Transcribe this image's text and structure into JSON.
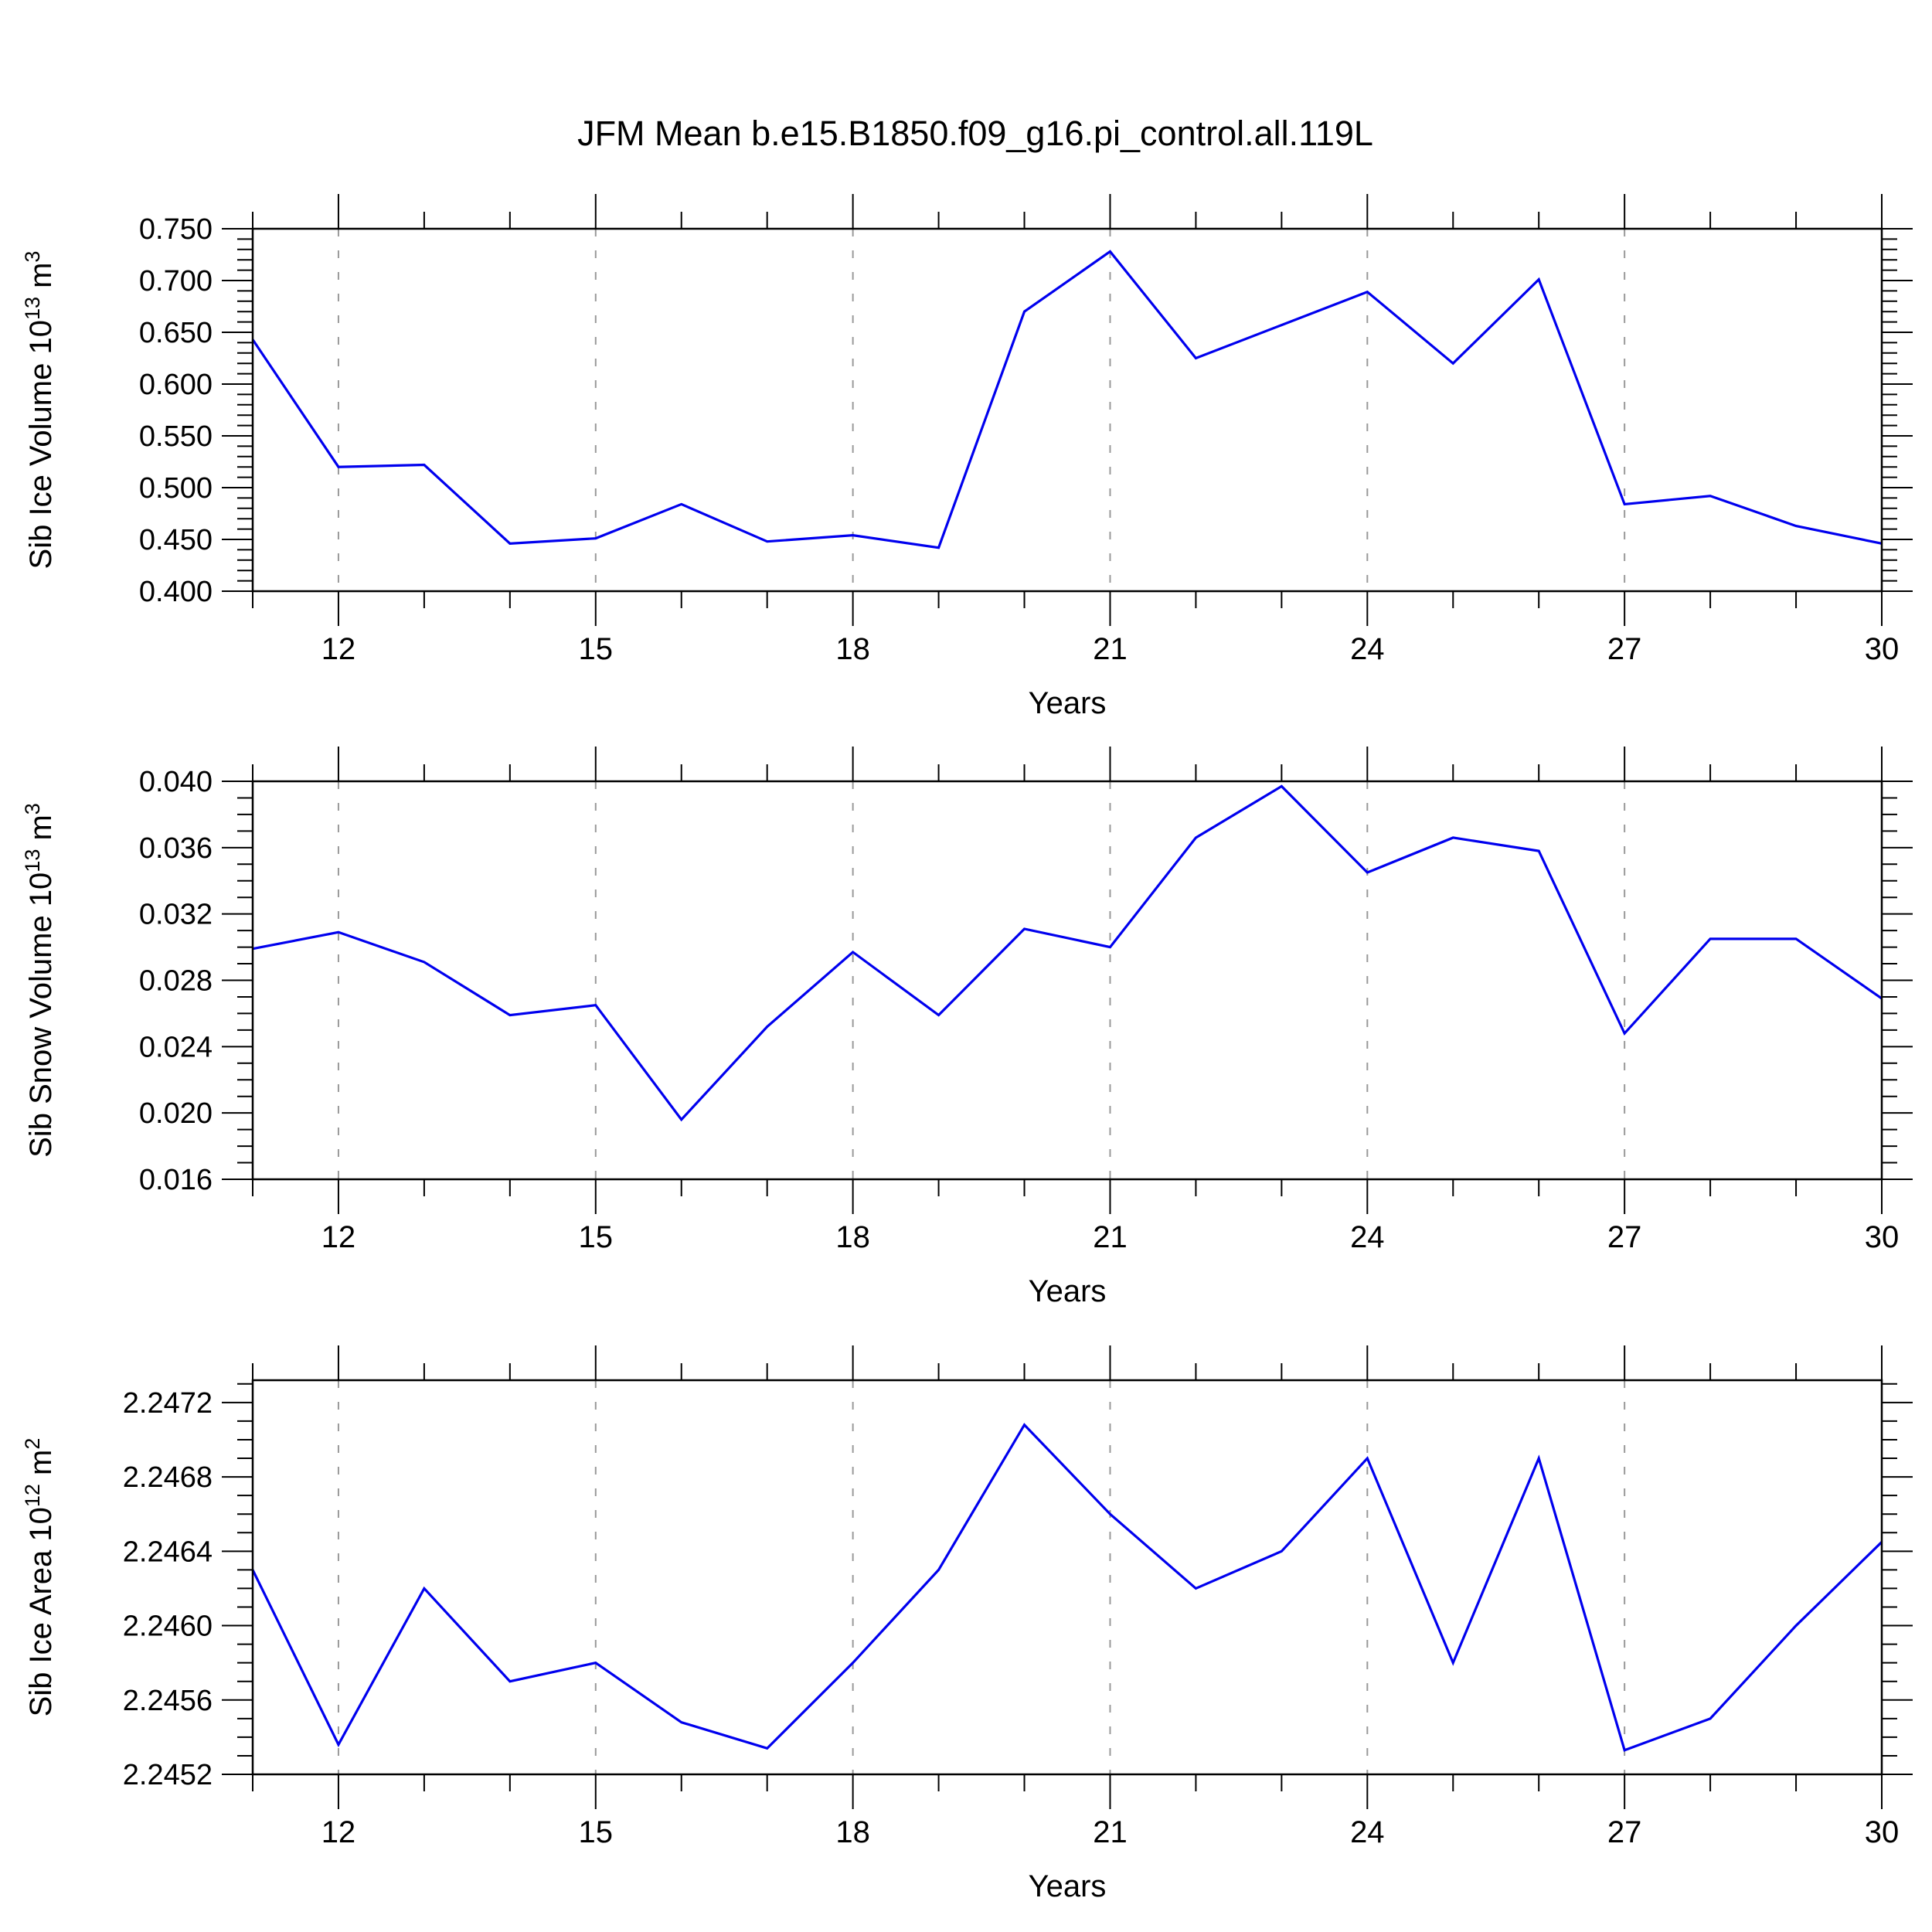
{
  "title": "JFM Mean b.e15.B1850.f09_g16.pi_control.all.119L",
  "colors": {
    "line": "#0000ee",
    "grid": "#999999",
    "axis": "#000000",
    "background": "#ffffff"
  },
  "x_axis": {
    "label": "Years",
    "years": [
      11,
      12,
      13,
      14,
      15,
      16,
      17,
      18,
      19,
      20,
      21,
      22,
      23,
      24,
      25,
      26,
      27,
      28,
      29,
      30
    ],
    "major_ticks": [
      12,
      15,
      18,
      21,
      24,
      27,
      30
    ],
    "major_tick_labels": [
      "12",
      "15",
      "18",
      "21",
      "24",
      "27",
      "30"
    ],
    "gridline_years": [
      12,
      15,
      18,
      21,
      24,
      27
    ],
    "range": [
      11,
      30
    ]
  },
  "chart_data": [
    {
      "type": "line",
      "name": "sib-ice-volume",
      "ylabel_text": "Sib Ice Volume 10¹³ m³",
      "ylabel_parts": [
        {
          "t": "Sib Ice Volume 10"
        },
        {
          "t": "13",
          "sup": true
        },
        {
          "t": " m"
        },
        {
          "t": "3",
          "sup": true
        }
      ],
      "xlabel": "Years",
      "x": [
        11,
        12,
        13,
        14,
        15,
        16,
        17,
        18,
        19,
        20,
        21,
        22,
        23,
        24,
        25,
        26,
        27,
        28,
        29,
        30
      ],
      "values": [
        0.643,
        0.52,
        0.522,
        0.446,
        0.451,
        0.484,
        0.448,
        0.454,
        0.442,
        0.67,
        0.728,
        0.625,
        0.657,
        0.689,
        0.62,
        0.701,
        0.484,
        0.492,
        0.463,
        0.446
      ],
      "ylim": [
        0.4,
        0.75
      ],
      "yticks": [
        {
          "v": 0.75,
          "label": "0.750"
        },
        {
          "v": 0.7,
          "label": "0.700"
        },
        {
          "v": 0.65,
          "label": "0.650"
        },
        {
          "v": 0.6,
          "label": "0.600"
        },
        {
          "v": 0.55,
          "label": "0.550"
        },
        {
          "v": 0.5,
          "label": "0.500"
        },
        {
          "v": 0.45,
          "label": "0.450"
        },
        {
          "v": 0.4,
          "label": "0.400"
        }
      ],
      "yminor_step": 0.01,
      "grid": true,
      "legend": "none"
    },
    {
      "type": "line",
      "name": "sib-snow-volume",
      "ylabel_text": "Sib Snow Volume 10¹³ m³",
      "ylabel_parts": [
        {
          "t": "Sib Snow Volume 10"
        },
        {
          "t": "13",
          "sup": true
        },
        {
          "t": " m"
        },
        {
          "t": "3",
          "sup": true
        }
      ],
      "xlabel": "Years",
      "x": [
        11,
        12,
        13,
        14,
        15,
        16,
        17,
        18,
        19,
        20,
        21,
        22,
        23,
        24,
        25,
        26,
        27,
        28,
        29,
        30
      ],
      "values": [
        0.0299,
        0.0309,
        0.0291,
        0.0259,
        0.0265,
        0.0196,
        0.0252,
        0.0297,
        0.0259,
        0.0311,
        0.03,
        0.0366,
        0.0397,
        0.0345,
        0.0366,
        0.0358,
        0.0248,
        0.0305,
        0.0305,
        0.0269
      ],
      "ylim": [
        0.016,
        0.04
      ],
      "yticks": [
        {
          "v": 0.04,
          "label": "0.040"
        },
        {
          "v": 0.036,
          "label": "0.036"
        },
        {
          "v": 0.032,
          "label": "0.032"
        },
        {
          "v": 0.028,
          "label": "0.028"
        },
        {
          "v": 0.024,
          "label": "0.024"
        },
        {
          "v": 0.02,
          "label": "0.020"
        },
        {
          "v": 0.016,
          "label": "0.016"
        }
      ],
      "yminor_step": 0.001,
      "grid": true,
      "legend": "none"
    },
    {
      "type": "line",
      "name": "sib-ice-area",
      "ylabel_text": "Sib Ice Area 10¹² m²",
      "ylabel_parts": [
        {
          "t": "Sib Ice Area 10"
        },
        {
          "t": "12",
          "sup": true
        },
        {
          "t": " m"
        },
        {
          "t": "2",
          "sup": true
        }
      ],
      "xlabel": "Years",
      "x": [
        11,
        12,
        13,
        14,
        15,
        16,
        17,
        18,
        19,
        20,
        21,
        22,
        23,
        24,
        25,
        26,
        27,
        28,
        29,
        30
      ],
      "values": [
        2.2463,
        2.24536,
        2.2462,
        2.2457,
        2.2458,
        2.24548,
        2.24534,
        2.2458,
        2.2463,
        2.24708,
        2.2466,
        2.2462,
        2.2464,
        2.2469,
        2.2458,
        2.2469,
        2.24533,
        2.2455,
        2.246,
        2.24645
      ],
      "ylim": [
        2.2452,
        2.24732
      ],
      "yticks": [
        {
          "v": 2.2472,
          "label": "2.2472"
        },
        {
          "v": 2.2468,
          "label": "2.2468"
        },
        {
          "v": 2.2464,
          "label": "2.2464"
        },
        {
          "v": 2.246,
          "label": "2.2460"
        },
        {
          "v": 2.2456,
          "label": "2.2456"
        },
        {
          "v": 2.2452,
          "label": "2.2452"
        }
      ],
      "yminor_step": 0.0001,
      "grid": true,
      "legend": "none"
    }
  ]
}
